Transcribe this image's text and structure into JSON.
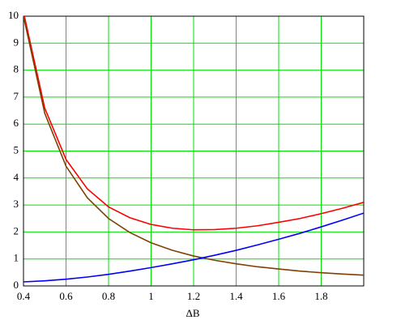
{
  "chart_data": {
    "type": "line",
    "x_label": "ΔB",
    "x": [
      0.4,
      0.5,
      0.6,
      0.7,
      0.8,
      0.9,
      1.0,
      1.1,
      1.2,
      1.3,
      1.4,
      1.5,
      1.6,
      1.7,
      1.8,
      1.9,
      2.0
    ],
    "series": [
      {
        "color": "#ff0000",
        "values": [
          10.15,
          6.59,
          4.69,
          3.6,
          2.93,
          2.53,
          2.28,
          2.14,
          2.08,
          2.09,
          2.14,
          2.23,
          2.36,
          2.5,
          2.68,
          2.88,
          3.1
        ]
      },
      {
        "color": "#804000",
        "values": [
          10,
          6.4,
          4.44,
          3.27,
          2.5,
          1.98,
          1.6,
          1.32,
          1.11,
          0.95,
          0.82,
          0.71,
          0.63,
          0.55,
          0.49,
          0.44,
          0.4
        ]
      },
      {
        "color": "#0000ff",
        "values": [
          0.15,
          0.19,
          0.25,
          0.33,
          0.43,
          0.55,
          0.68,
          0.82,
          0.97,
          1.14,
          1.32,
          1.52,
          1.73,
          1.95,
          2.19,
          2.44,
          2.7
        ]
      }
    ],
    "xlim": [
      0.4,
      2.0
    ],
    "xticks": [
      0.4,
      0.6,
      0.8,
      1,
      1.2,
      1.4,
      1.6,
      1.8
    ],
    "ylim": [
      0,
      10
    ],
    "yticks": [
      0,
      1,
      2,
      3,
      4,
      5,
      6,
      7,
      8,
      9,
      10
    ],
    "grid": true,
    "grid_color": "#00e000"
  }
}
